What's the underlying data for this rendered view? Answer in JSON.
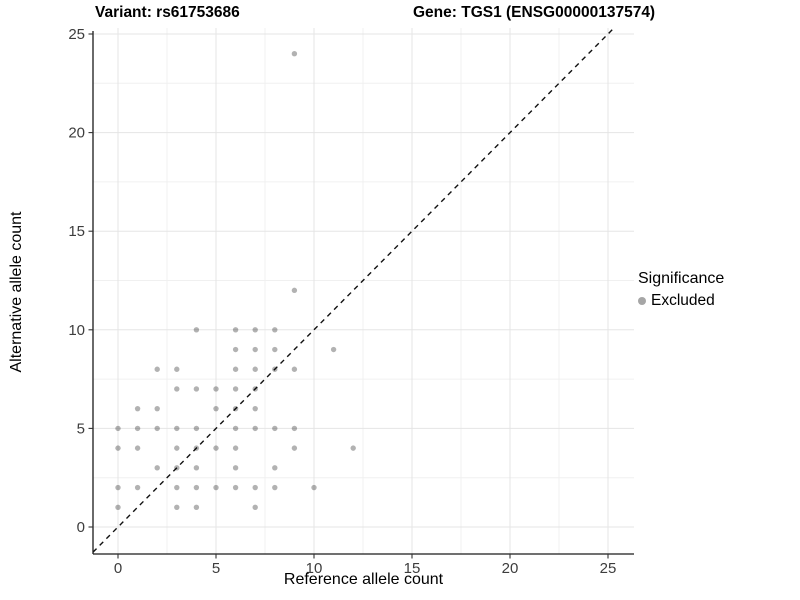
{
  "chart_data": {
    "type": "scatter",
    "title_left": "Variant: rs61753686",
    "title_right": "Gene: TGS1 (ENSG00000137574)",
    "xlabel": "Reference allele count",
    "ylabel": "Alternative allele count",
    "xlim": [
      -1.3,
      26.3
    ],
    "ylim": [
      -1.4,
      25.3
    ],
    "x_ticks": [
      0,
      5,
      10,
      15,
      20,
      25
    ],
    "y_ticks": [
      0,
      5,
      10,
      15,
      20,
      25
    ],
    "minor_ticks": [
      2.5,
      7.5,
      12.5,
      17.5,
      22.5
    ],
    "grid": "major+minor",
    "legend_position": "right",
    "legend": {
      "title": "Significance",
      "items": [
        {
          "label": "Excluded",
          "color": "#a6a6a6"
        }
      ]
    },
    "identity_line": {
      "equation": "y = x",
      "style": "dashed",
      "color": "#111111"
    },
    "series": [
      {
        "name": "Excluded",
        "point_color": "#000000",
        "point_opacity": 0.3,
        "points": [
          [
            9,
            24
          ],
          [
            9,
            12
          ],
          [
            4,
            10
          ],
          [
            6,
            10
          ],
          [
            7,
            10
          ],
          [
            8,
            10
          ],
          [
            6,
            9
          ],
          [
            7,
            9
          ],
          [
            8,
            9
          ],
          [
            11,
            9
          ],
          [
            2,
            8
          ],
          [
            3,
            8
          ],
          [
            6,
            8
          ],
          [
            7,
            8
          ],
          [
            8,
            8
          ],
          [
            9,
            8
          ],
          [
            3,
            7
          ],
          [
            4,
            7
          ],
          [
            5,
            7
          ],
          [
            6,
            7
          ],
          [
            7,
            7
          ],
          [
            1,
            6
          ],
          [
            2,
            6
          ],
          [
            5,
            6
          ],
          [
            6,
            6
          ],
          [
            7,
            6
          ],
          [
            0,
            5
          ],
          [
            1,
            5
          ],
          [
            2,
            5
          ],
          [
            3,
            5
          ],
          [
            4,
            5
          ],
          [
            6,
            5
          ],
          [
            7,
            5
          ],
          [
            8,
            5
          ],
          [
            9,
            5
          ],
          [
            0,
            4
          ],
          [
            1,
            4
          ],
          [
            3,
            4
          ],
          [
            4,
            4
          ],
          [
            5,
            4
          ],
          [
            6,
            4
          ],
          [
            9,
            4
          ],
          [
            12,
            4
          ],
          [
            2,
            3
          ],
          [
            3,
            3
          ],
          [
            4,
            3
          ],
          [
            6,
            3
          ],
          [
            8,
            3
          ],
          [
            0,
            2
          ],
          [
            1,
            2
          ],
          [
            3,
            2
          ],
          [
            4,
            2
          ],
          [
            5,
            2
          ],
          [
            6,
            2
          ],
          [
            7,
            2
          ],
          [
            8,
            2
          ],
          [
            10,
            2
          ],
          [
            0,
            1
          ],
          [
            3,
            1
          ],
          [
            4,
            1
          ],
          [
            7,
            1
          ]
        ]
      }
    ]
  },
  "style_colors": {
    "grid_major": "#e5e5e5",
    "grid_minor": "#f0f0f0",
    "axis_line": "#1a1a1a",
    "tick_mark": "#333333",
    "tick_label": "#3d3d3d"
  }
}
